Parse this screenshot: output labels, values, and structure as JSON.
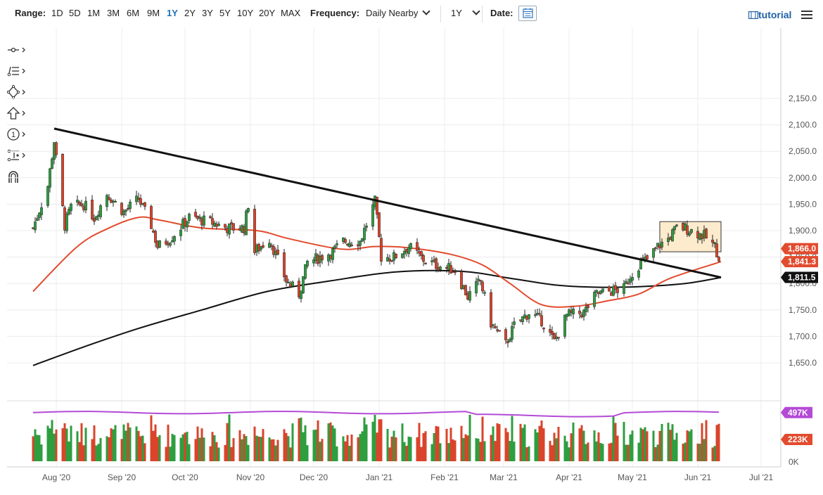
{
  "toolbar": {
    "range_label": "Range:",
    "ranges": [
      "1D",
      "5D",
      "1M",
      "3M",
      "6M",
      "9M",
      "1Y",
      "2Y",
      "3Y",
      "5Y",
      "10Y",
      "20Y",
      "MAX"
    ],
    "active_range": "1Y",
    "frequency_label": "Frequency:",
    "frequency_value": "Daily Nearby",
    "period_value": "1Y",
    "date_label": "Date:",
    "tutorial_label": "tutorial"
  },
  "tools": [
    "crosshair-icon",
    "fib-icon",
    "shape-icon",
    "arrow-up-icon",
    "marker-icon",
    "measure-icon",
    "magnet-icon"
  ],
  "colors": {
    "up": "#2e9e3f",
    "down": "#d9442b",
    "ma_short": "#e24b2e",
    "ma_long": "#111111",
    "volume_ma": "#b44ad6",
    "zone": "#fde8c4"
  },
  "chart_data": {
    "type": "candlestick",
    "price_axis": {
      "ylim": [
        1620,
        2175
      ],
      "ticks": [
        "1,650.0",
        "1,700.0",
        "1,750.0",
        "1,800.0",
        "1,850.0",
        "1,900.0",
        "1,950.0",
        "2,000.0",
        "2,050.0",
        "2,100.0",
        "2,150.0"
      ]
    },
    "x_axis": {
      "ticks": [
        "Aug '20",
        "Sep '20",
        "Oct '20",
        "Nov '20",
        "Dec '20",
        "Jan '21",
        "Feb '21",
        "Mar '21",
        "Apr '21",
        "May '21",
        "Jun '21",
        "Jul '21"
      ]
    },
    "ohlc_anchors": [
      [
        "2020-07-27",
        1905
      ],
      [
        "2020-08-03",
        1985
      ],
      [
        "2020-08-06",
        2070
      ],
      [
        "2020-08-07",
        2035
      ],
      [
        "2020-08-11",
        1910
      ],
      [
        "2020-08-14",
        1945
      ],
      [
        "2020-08-20",
        1950
      ],
      [
        "2020-08-25",
        1925
      ],
      [
        "2020-08-31",
        1970
      ],
      [
        "2020-09-08",
        1935
      ],
      [
        "2020-09-15",
        1960
      ],
      [
        "2020-09-21",
        1910
      ],
      [
        "2020-09-24",
        1870
      ],
      [
        "2020-09-30",
        1885
      ],
      [
        "2020-10-09",
        1925
      ],
      [
        "2020-10-20",
        1915
      ],
      [
        "2020-10-27",
        1905
      ],
      [
        "2020-11-04",
        1905
      ],
      [
        "2020-11-06",
        1950
      ],
      [
        "2020-11-09",
        1860
      ],
      [
        "2020-11-16",
        1885
      ],
      [
        "2020-11-24",
        1805
      ],
      [
        "2020-11-30",
        1780
      ],
      [
        "2020-12-04",
        1840
      ],
      [
        "2020-12-16",
        1860
      ],
      [
        "2020-12-21",
        1880
      ],
      [
        "2020-12-29",
        1880
      ],
      [
        "2021-01-05",
        1955
      ],
      [
        "2021-01-08",
        1850
      ],
      [
        "2021-01-14",
        1850
      ],
      [
        "2021-01-21",
        1870
      ],
      [
        "2021-01-28",
        1845
      ],
      [
        "2021-02-03",
        1835
      ],
      [
        "2021-02-08",
        1830
      ],
      [
        "2021-02-12",
        1825
      ],
      [
        "2021-02-18",
        1775
      ],
      [
        "2021-02-24",
        1805
      ],
      [
        "2021-03-01",
        1725
      ],
      [
        "2021-03-08",
        1685
      ],
      [
        "2021-03-12",
        1720
      ],
      [
        "2021-03-19",
        1745
      ],
      [
        "2021-03-25",
        1730
      ],
      [
        "2021-03-31",
        1690
      ],
      [
        "2021-04-06",
        1740
      ],
      [
        "2021-04-14",
        1745
      ],
      [
        "2021-04-20",
        1780
      ],
      [
        "2021-04-26",
        1785
      ],
      [
        "2021-05-03",
        1790
      ],
      [
        "2021-05-06",
        1815
      ],
      [
        "2021-05-11",
        1840
      ],
      [
        "2021-05-14",
        1845
      ],
      [
        "2021-05-19",
        1870
      ],
      [
        "2021-05-24",
        1885
      ],
      [
        "2021-05-28",
        1905
      ],
      [
        "2021-06-01",
        1905
      ],
      [
        "2021-06-07",
        1895
      ],
      [
        "2021-06-10",
        1890
      ],
      [
        "2021-06-15",
        1870
      ],
      [
        "2021-06-17",
        1850
      ]
    ],
    "trendline": [
      [
        "2020-08-06",
        2093
      ],
      [
        "2021-06-18",
        1811.5
      ]
    ],
    "moving_average_short": [
      [
        "2020-07-27",
        1785
      ],
      [
        "2020-08-17",
        1870
      ],
      [
        "2020-09-01",
        1905
      ],
      [
        "2020-09-15",
        1925
      ],
      [
        "2020-09-25",
        1920
      ],
      [
        "2020-10-15",
        1905
      ],
      [
        "2020-11-10",
        1900
      ],
      [
        "2020-11-25",
        1885
      ],
      [
        "2020-12-20",
        1865
      ],
      [
        "2021-01-05",
        1870
      ],
      [
        "2021-01-20",
        1868
      ],
      [
        "2021-02-10",
        1855
      ],
      [
        "2021-02-25",
        1835
      ],
      [
        "2021-03-10",
        1800
      ],
      [
        "2021-03-25",
        1760
      ],
      [
        "2021-04-10",
        1757
      ],
      [
        "2021-04-25",
        1767
      ],
      [
        "2021-05-10",
        1780
      ],
      [
        "2021-05-25",
        1810
      ],
      [
        "2021-06-18",
        1841.3
      ]
    ],
    "moving_average_long": [
      [
        "2020-07-27",
        1645
      ],
      [
        "2020-08-20",
        1680
      ],
      [
        "2020-09-15",
        1715
      ],
      [
        "2020-10-15",
        1750
      ],
      [
        "2020-11-15",
        1785
      ],
      [
        "2020-12-15",
        1805
      ],
      [
        "2021-01-15",
        1822
      ],
      [
        "2021-02-15",
        1823
      ],
      [
        "2021-03-10",
        1810
      ],
      [
        "2021-04-01",
        1797
      ],
      [
        "2021-04-20",
        1793
      ],
      [
        "2021-05-10",
        1794
      ],
      [
        "2021-06-01",
        1800
      ],
      [
        "2021-06-18",
        1811.5
      ]
    ],
    "consolidation_box": {
      "from": "2021-05-20",
      "to": "2021-06-18",
      "low": 1860,
      "high": 1917
    },
    "price_tags": [
      {
        "value": 1866.0,
        "label": "1,866.0"
      },
      {
        "value": 1841.3,
        "label": "1,841.3"
      },
      {
        "value": 1811.5,
        "label": "1,811.5"
      }
    ],
    "volume_axis": {
      "zero_label": "0K"
    },
    "volume_tags": [
      {
        "value": 497,
        "label": "497K"
      },
      {
        "value": 223,
        "label": "223K"
      }
    ],
    "volume_ma": 497,
    "volume_range_k": [
      120,
      560
    ]
  }
}
